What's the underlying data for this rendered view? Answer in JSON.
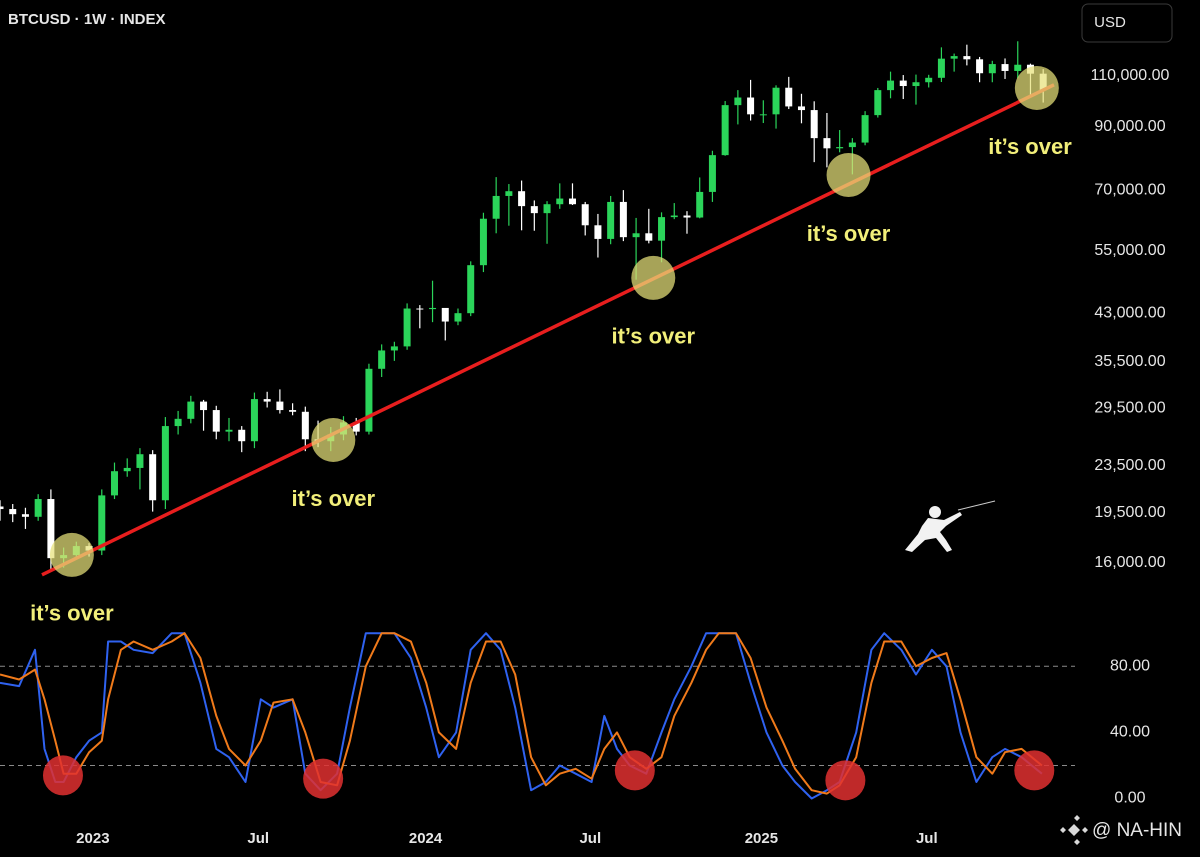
{
  "header": {
    "symbol": "BTCUSD · 1W · INDEX",
    "currency": "USD"
  },
  "watermark": "@ NA-HIN",
  "chart_data": [
    {
      "type": "candlestick",
      "log_scale": true,
      "up_color": "#2bd45a",
      "down_color": "#ffffff",
      "xlim": [
        0,
        169
      ],
      "ylim": [
        12760,
        148600
      ],
      "yticks": [
        {
          "value": 16000,
          "label": "16,000.00"
        },
        {
          "value": 19500,
          "label": "19,500.00"
        },
        {
          "value": 23500,
          "label": "23,500.00"
        },
        {
          "value": 29500,
          "label": "29,500.00"
        },
        {
          "value": 35500,
          "label": "35,500.00"
        },
        {
          "value": 43000,
          "label": "43,000.00"
        },
        {
          "value": 55000,
          "label": "55,000.00"
        },
        {
          "value": 70000,
          "label": "70,000.00"
        },
        {
          "value": 90000,
          "label": "90,000.00"
        },
        {
          "value": 110000,
          "label": "110,000.00"
        }
      ],
      "x": [
        0,
        2,
        4,
        6,
        8,
        10,
        12,
        14,
        16,
        18,
        20,
        22,
        24,
        26,
        28,
        30,
        32,
        34,
        36,
        38,
        40,
        42,
        44,
        46,
        48,
        50,
        52,
        54,
        56,
        58,
        60,
        62,
        64,
        66,
        68,
        70,
        72,
        74,
        76,
        78,
        80,
        82,
        84,
        86,
        88,
        90,
        92,
        94,
        96,
        98,
        100,
        102,
        104,
        106,
        108,
        110,
        112,
        114,
        116,
        118,
        120,
        122,
        124,
        126,
        128,
        130,
        132,
        134,
        136,
        138,
        140,
        142,
        144,
        146,
        148,
        150,
        152,
        154,
        156,
        158,
        160,
        162,
        164
      ],
      "open": [
        20000,
        19800,
        19400,
        19200,
        20600,
        16300,
        16500,
        17100,
        16800,
        20900,
        23000,
        23300,
        24600,
        20500,
        27500,
        28300,
        30300,
        29300,
        26900,
        27100,
        25900,
        30600,
        30300,
        29300,
        29100,
        26100,
        25900,
        26600,
        27900,
        26900,
        34500,
        37100,
        37700,
        43800,
        43700,
        43900,
        41600,
        43000,
        52000,
        62500,
        68400,
        69700,
        65700,
        63900,
        66200,
        67700,
        66200,
        60900,
        57700,
        66800,
        58100,
        59000,
        57300,
        62900,
        63300,
        62800,
        69500,
        80400,
        98000,
        101000,
        94500,
        94500,
        105000,
        97500,
        96100,
        86000,
        82600,
        83000,
        84500,
        94200,
        104000,
        108000,
        105700,
        107300,
        109200,
        117800,
        119000,
        117500,
        111200,
        115300,
        112200,
        115000,
        111000
      ],
      "high": [
        20500,
        20200,
        19900,
        21000,
        21400,
        17000,
        17400,
        17300,
        21400,
        23800,
        24200,
        25200,
        25000,
        28500,
        29200,
        31000,
        30500,
        29800,
        28400,
        27500,
        31400,
        31500,
        31800,
        30100,
        29700,
        28100,
        27400,
        28600,
        28400,
        35200,
        38000,
        38400,
        44700,
        44400,
        48900,
        43100,
        43800,
        52800,
        64000,
        73700,
        71700,
        72700,
        67200,
        67000,
        71900,
        71900,
        66800,
        63700,
        68400,
        70000,
        62700,
        65000,
        64100,
        66500,
        64400,
        73600,
        81800,
        99600,
        104000,
        108300,
        99900,
        106000,
        109600,
        102500,
        99500,
        95000,
        88800,
        86000,
        95700,
        104900,
        111900,
        110400,
        110600,
        110500,
        123200,
        120200,
        124500,
        118600,
        116800,
        117900,
        126200,
        115500,
        113000
      ],
      "low": [
        18900,
        18800,
        18300,
        18900,
        15600,
        15700,
        16300,
        16400,
        16500,
        20600,
        22500,
        21400,
        19600,
        19800,
        26600,
        27800,
        27000,
        26100,
        25900,
        24800,
        25200,
        29600,
        28900,
        28700,
        24900,
        25300,
        24900,
        26000,
        26500,
        26600,
        33400,
        35600,
        37200,
        40500,
        41500,
        38600,
        41000,
        42500,
        50600,
        59000,
        60800,
        59700,
        59600,
        56600,
        65000,
        66000,
        58500,
        53600,
        56500,
        57200,
        49100,
        56700,
        52600,
        62400,
        58900,
        62600,
        66800,
        80200,
        90800,
        92200,
        91300,
        89300,
        96500,
        91200,
        78200,
        76600,
        81300,
        74500,
        83600,
        93300,
        100700,
        100400,
        98200,
        105100,
        107400,
        111900,
        114700,
        107300,
        107300,
        108700,
        109000,
        102000,
        99000
      ],
      "close": [
        19800,
        19400,
        19200,
        20600,
        16300,
        16500,
        17100,
        16800,
        20900,
        23000,
        23300,
        24600,
        20500,
        27500,
        28300,
        30300,
        29300,
        26900,
        27100,
        25900,
        30600,
        30300,
        29300,
        29100,
        26100,
        25900,
        26600,
        27900,
        26900,
        34500,
        37100,
        37700,
        43800,
        43700,
        43900,
        41600,
        43000,
        52000,
        62500,
        68400,
        69700,
        65700,
        63900,
        66200,
        67700,
        66200,
        60900,
        57700,
        66800,
        58100,
        59000,
        57300,
        62900,
        63300,
        62800,
        69500,
        80400,
        98000,
        101000,
        94500,
        94500,
        105000,
        97500,
        96100,
        86000,
        82600,
        83000,
        84500,
        94200,
        104000,
        108000,
        105700,
        107300,
        109200,
        117800,
        119000,
        117500,
        111200,
        115300,
        112200,
        115000,
        111000,
        104000
      ],
      "trendline": {
        "x": [
          6.6,
          165.7
        ],
        "values": [
          15260,
          106200
        ],
        "color": "#e81e1e"
      },
      "highlight_color": "#e8e27a",
      "annotations": [
        {
          "text": "it’s over",
          "x": 11.3,
          "y": 16510
        },
        {
          "text": "it’s over",
          "x": 52.4,
          "y": 26030
        },
        {
          "text": "it’s over",
          "x": 102.7,
          "y": 49450
        },
        {
          "text": "it’s over",
          "x": 133.4,
          "y": 74320
        },
        {
          "text": "it’s over",
          "x": 163,
          "y": 104900
        }
      ]
    },
    {
      "type": "line",
      "xlim": [
        0,
        169
      ],
      "ylim": [
        -13,
        108
      ],
      "yticks": [
        {
          "value": 0,
          "label": "0.00"
        },
        {
          "value": 40,
          "label": "40.00"
        },
        {
          "value": 80,
          "label": "80.00"
        }
      ],
      "xticks": [
        {
          "value": 14.6,
          "label": "2023"
        },
        {
          "value": 40.6,
          "label": "Jul"
        },
        {
          "value": 66.9,
          "label": "2024"
        },
        {
          "value": 92.8,
          "label": "Jul"
        },
        {
          "value": 119.7,
          "label": "2025"
        },
        {
          "value": 145.7,
          "label": "Jul"
        }
      ],
      "hlines": [
        20,
        80
      ],
      "x": [
        0,
        3,
        5.5,
        7,
        8.7,
        10,
        12,
        14,
        16,
        17,
        19,
        21,
        24,
        27,
        29,
        31.5,
        34,
        36,
        38.6,
        41,
        43,
        46,
        48,
        50.4,
        53,
        55,
        57.5,
        60,
        62,
        64.6,
        67,
        69,
        71.7,
        74,
        76.4,
        78.7,
        81,
        83.5,
        85.8,
        88,
        90.5,
        93,
        95,
        97,
        99,
        101.6,
        104,
        106,
        108.7,
        111,
        113,
        115.7,
        118,
        120.5,
        123,
        125,
        127.6,
        130,
        132,
        134.6,
        137,
        139,
        141.7,
        144,
        146.5,
        148.8,
        151,
        153.5,
        156,
        158,
        160.6,
        163.8
      ],
      "series": [
        {
          "color": "#2f62f0",
          "values": [
            70,
            68,
            90,
            30,
            10,
            10,
            25,
            35,
            40,
            95,
            95,
            90,
            88,
            100,
            100,
            70,
            30,
            25,
            10,
            60,
            55,
            60,
            15,
            5,
            15,
            55,
            100,
            100,
            100,
            85,
            55,
            25,
            40,
            90,
            100,
            90,
            55,
            5,
            10,
            20,
            15,
            10,
            50,
            30,
            20,
            15,
            40,
            60,
            80,
            100,
            100,
            100,
            70,
            40,
            20,
            10,
            0,
            5,
            10,
            40,
            90,
            100,
            90,
            75,
            90,
            80,
            40,
            10,
            25,
            30,
            25,
            15
          ]
        },
        {
          "color": "#f07a1a",
          "values": [
            75,
            72,
            78,
            60,
            35,
            15,
            15,
            28,
            35,
            60,
            90,
            95,
            90,
            95,
            100,
            85,
            50,
            30,
            20,
            35,
            58,
            60,
            40,
            10,
            8,
            35,
            80,
            100,
            100,
            95,
            70,
            40,
            30,
            70,
            95,
            95,
            75,
            25,
            8,
            15,
            18,
            12,
            30,
            40,
            25,
            18,
            25,
            50,
            70,
            90,
            100,
            100,
            85,
            55,
            35,
            18,
            5,
            3,
            8,
            25,
            70,
            95,
            95,
            80,
            85,
            88,
            60,
            25,
            15,
            28,
            30,
            20
          ]
        }
      ],
      "highlight_color": "#e03030",
      "highlights": [
        {
          "x": 9.9,
          "y": 14
        },
        {
          "x": 50.8,
          "y": 12
        },
        {
          "x": 99.8,
          "y": 17
        },
        {
          "x": 132.9,
          "y": 11
        },
        {
          "x": 162.6,
          "y": 17
        }
      ]
    }
  ]
}
